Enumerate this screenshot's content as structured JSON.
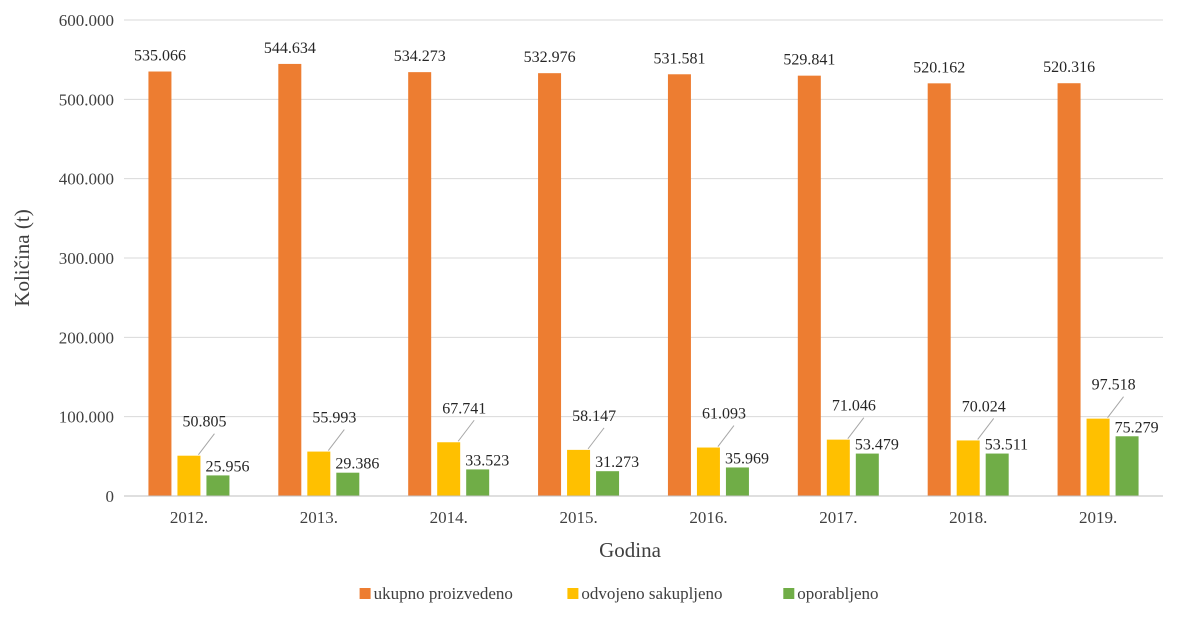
{
  "chart_data": {
    "type": "bar",
    "title": "",
    "xlabel": "Godina",
    "ylabel": "Količina (t)",
    "categories": [
      "2012.",
      "2013.",
      "2014.",
      "2015.",
      "2016.",
      "2017.",
      "2018.",
      "2019."
    ],
    "ylim": [
      0,
      600000
    ],
    "yticks": [
      {
        "value": 0,
        "label": "0"
      },
      {
        "value": 100000,
        "label": "100.000"
      },
      {
        "value": 200000,
        "label": "200.000"
      },
      {
        "value": 300000,
        "label": "300.000"
      },
      {
        "value": 400000,
        "label": "400.000"
      },
      {
        "value": 500000,
        "label": "500.000"
      },
      {
        "value": 600000,
        "label": "600.000"
      }
    ],
    "grid": true,
    "legend_position": "bottom",
    "series": [
      {
        "name": "ukupno proizvedeno",
        "color": "#ed7d31",
        "values": [
          535066,
          544634,
          534273,
          532976,
          531581,
          529841,
          520162,
          520316
        ],
        "labels": [
          "535.066",
          "544.634",
          "534.273",
          "532.976",
          "531.581",
          "529.841",
          "520.162",
          "520.316"
        ]
      },
      {
        "name": "odvojeno sakupljeno",
        "color": "#ffc000",
        "values": [
          50805,
          55993,
          67741,
          58147,
          61093,
          71046,
          70024,
          97518
        ],
        "labels": [
          "50.805",
          "55.993",
          "67.741",
          "58.147",
          "61.093",
          "71.046",
          "70.024",
          "97.518"
        ]
      },
      {
        "name": "oporabljeno",
        "color": "#70ad47",
        "values": [
          25956,
          29386,
          33523,
          31273,
          35969,
          53479,
          53511,
          75279
        ],
        "labels": [
          "25.956",
          "29.386",
          "33.523",
          "31.273",
          "35.969",
          "53.479",
          "53.511",
          "75.279"
        ]
      }
    ]
  }
}
